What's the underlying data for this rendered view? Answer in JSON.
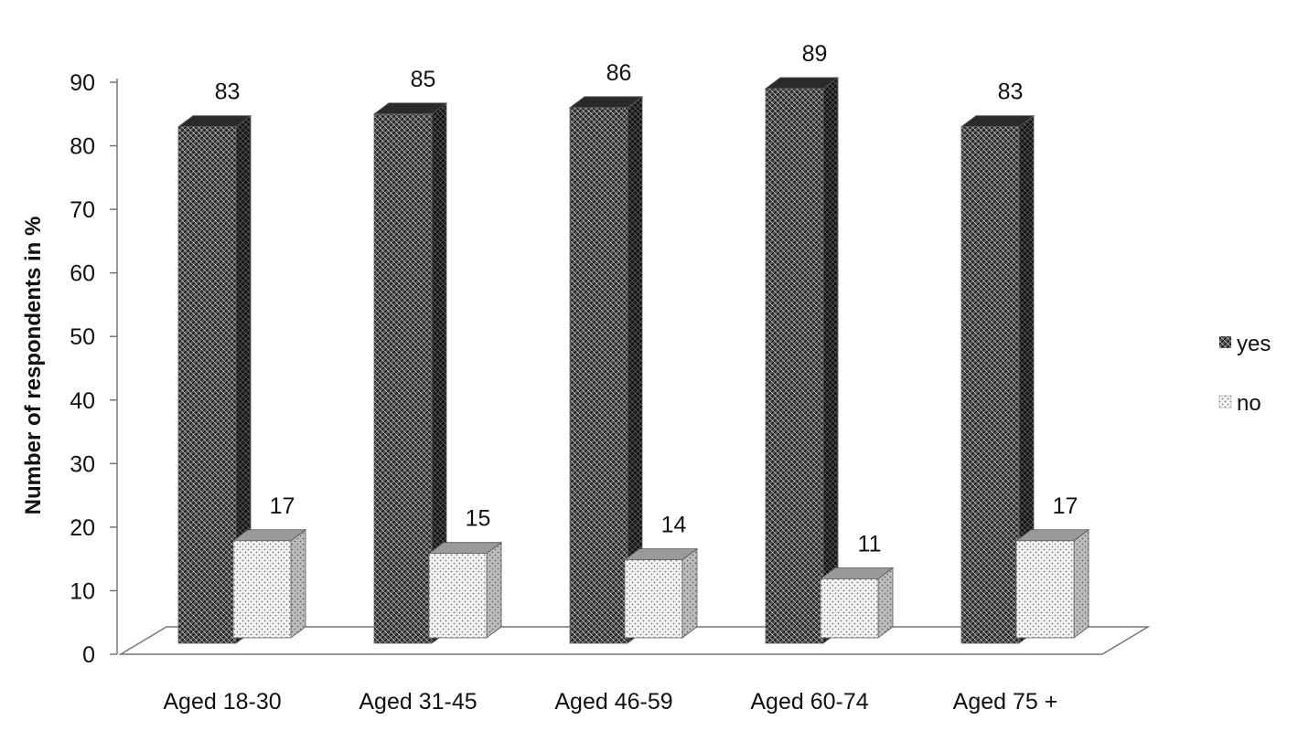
{
  "chart_data": {
    "type": "bar",
    "title": "",
    "xlabel": "",
    "ylabel": "Number of respondents in %",
    "categories": [
      "Aged 18-30",
      "Aged 31-45",
      "Aged 46-59",
      "Aged 60-74",
      "Aged 75 +"
    ],
    "series": [
      {
        "name": "yes",
        "values": [
          83,
          85,
          86,
          89,
          83
        ],
        "pattern": "dense-crosshatch",
        "color": "#3a3a3a"
      },
      {
        "name": "no",
        "values": [
          17,
          15,
          14,
          11,
          17
        ],
        "pattern": "light-dots",
        "color": "#cfcfcf"
      }
    ],
    "ylim": [
      0,
      90
    ],
    "yticks": [
      0,
      10,
      20,
      30,
      40,
      50,
      60,
      70,
      80,
      90
    ],
    "grid": false,
    "legend_position": "right",
    "three_d": true,
    "data_labels": true
  }
}
